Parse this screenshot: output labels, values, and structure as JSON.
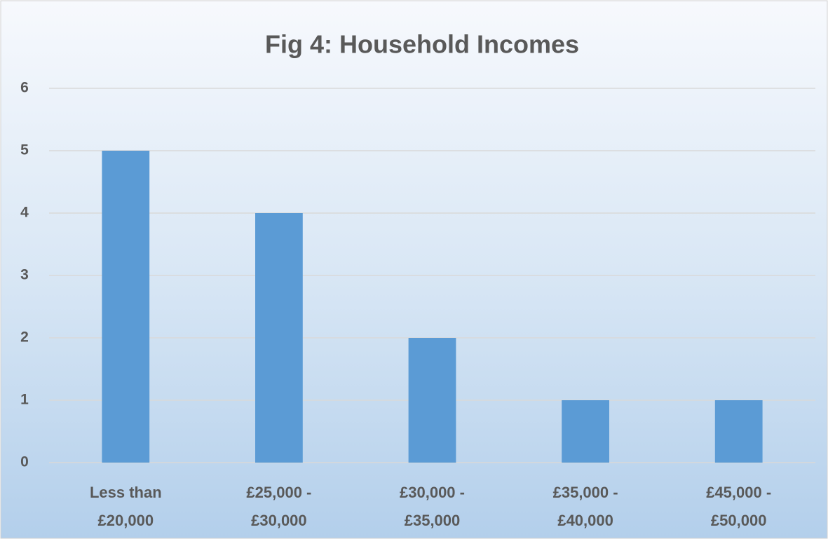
{
  "chart_data": {
    "type": "bar",
    "title": "Fig 4: Household Incomes",
    "categories": [
      "Less than £20,000",
      "£25,000 - £30,000",
      "£30,000 - £35,000",
      "£35,000 - £40,000",
      "£45,000 - £50,000"
    ],
    "values": [
      5,
      4,
      2,
      1,
      1
    ],
    "color": "#5b9bd5",
    "ylim": [
      0,
      6
    ],
    "yticks": [
      0,
      1,
      2,
      3,
      4,
      5,
      6
    ],
    "grid": true
  }
}
